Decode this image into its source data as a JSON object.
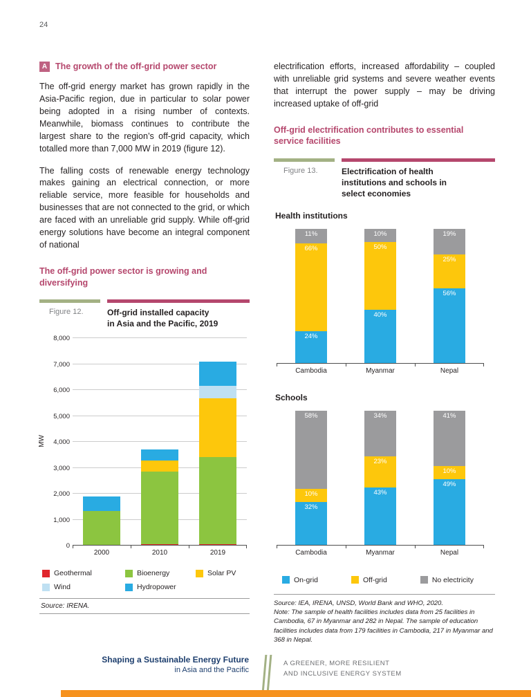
{
  "colors": {
    "accent-pink": "#b5476d",
    "sage-green": "#a3b184",
    "orange": "#f6921e",
    "navy": "#1e3f6e",
    "body-text": "#231f20",
    "gray-text": "#6d6e71"
  },
  "page": {
    "number": "24"
  },
  "left_column": {
    "section": {
      "marker": "A",
      "title": "The growth of the off-grid power sector"
    },
    "para1": "The off-grid energy market has grown rapidly in the Asia-Pacific region, due in particular to solar power being adopted in a rising number of contexts. Meanwhile, biomass continues to contribute the largest share to the region’s off-grid capacity, which totalled more than 7,000 MW in 2019 (figure 12).",
    "para2": "The falling costs of renewable energy technology makes gaining an electrical connection, or more reliable service, more feasible for households and businesses that are not connected to the grid, or which are faced with an unreliable grid supply. While off-grid energy solutions have become an integral component of national",
    "figure12_intro": "The off-grid power sector is growing and diversifying",
    "figure12": {
      "label": "Figure 12.",
      "title": "Off-grid installed capacity\nin Asia and the Pacific, 2019",
      "source": "Source:  IRENA."
    }
  },
  "right_column": {
    "para": "electrification efforts, increased affordability – coupled with unreliable grid systems and severe weather events that interrupt the power supply – may be driving increased uptake of off-grid",
    "heading": "Off-grid electrification contributes to essential service facilities",
    "figure13": {
      "label": "Figure  13.",
      "title": "Electrification of health\ninstitutions and schools in\nselect economies",
      "health_title": "Health institutions",
      "schools_title": "Schools",
      "source": "Source:  IEA, IRENA, UNSD, World Bank and WHO, 2020.",
      "note": "Note:  The sample of health facilities includes data from 25 facilities in Cambodia, 67 in Myanmar and 282 in Nepal. The sample of education facilities includes data from 179 facilities in Cambodia, 217 in Myanmar and 368 in Nepal."
    }
  },
  "footer": {
    "title": "Shaping a Sustainable Energy Future",
    "subtitle": "in Asia and the Pacific",
    "line1": "A GREENER, MORE RESILIENT",
    "line2": "AND INCLUSIVE ENERGY SYSTEM"
  },
  "chart_data": [
    {
      "id": "fig12",
      "type": "bar",
      "stacked": true,
      "title": "Off-grid installed capacity in Asia and the Pacific, 2019",
      "categories": [
        "2000",
        "2010",
        "2019"
      ],
      "xlabel": "",
      "ylabel": "MW",
      "ylim": [
        0,
        8000
      ],
      "ytick_step": 1000,
      "grid": true,
      "value_labels": false,
      "legend_position": "bottom",
      "series": [
        {
          "name": "Geothermal",
          "color": "#e0262d",
          "values": [
            20,
            60,
            60
          ]
        },
        {
          "name": "Bioenergy",
          "color": "#8cc540",
          "values": [
            1320,
            2790,
            3350
          ]
        },
        {
          "name": "Solar PV",
          "color": "#fdc70c",
          "values": [
            0,
            430,
            2270
          ]
        },
        {
          "name": "Wind",
          "color": "#bfe0f2",
          "values": [
            0,
            0,
            480
          ]
        },
        {
          "name": "Hydropower",
          "color": "#29abe2",
          "values": [
            545,
            420,
            940
          ]
        }
      ]
    },
    {
      "id": "fig13_health",
      "type": "bar",
      "stacked": true,
      "percent": true,
      "title": "Health institutions",
      "categories": [
        "Cambodia",
        "Myanmar",
        "Nepal"
      ],
      "grid": false,
      "value_labels": true,
      "series": [
        {
          "name": "On-grid",
          "color": "#29abe2",
          "values": [
            24,
            40,
            56
          ]
        },
        {
          "name": "Off-grid",
          "color": "#fdc70c",
          "values": [
            66,
            50,
            25
          ]
        },
        {
          "name": "No electricity",
          "color": "#9b9b9d",
          "values": [
            11,
            10,
            19
          ]
        }
      ]
    },
    {
      "id": "fig13_schools",
      "type": "bar",
      "stacked": true,
      "percent": true,
      "title": "Schools",
      "categories": [
        "Cambodia",
        "Myanmar",
        "Nepal"
      ],
      "grid": false,
      "value_labels": true,
      "legend_position": "bottom",
      "series": [
        {
          "name": "On-grid",
          "color": "#29abe2",
          "values": [
            32,
            43,
            49
          ]
        },
        {
          "name": "Off-grid",
          "color": "#fdc70c",
          "values": [
            10,
            23,
            10
          ]
        },
        {
          "name": "No electricity",
          "color": "#9b9b9d",
          "values": [
            58,
            34,
            41
          ]
        }
      ]
    }
  ]
}
